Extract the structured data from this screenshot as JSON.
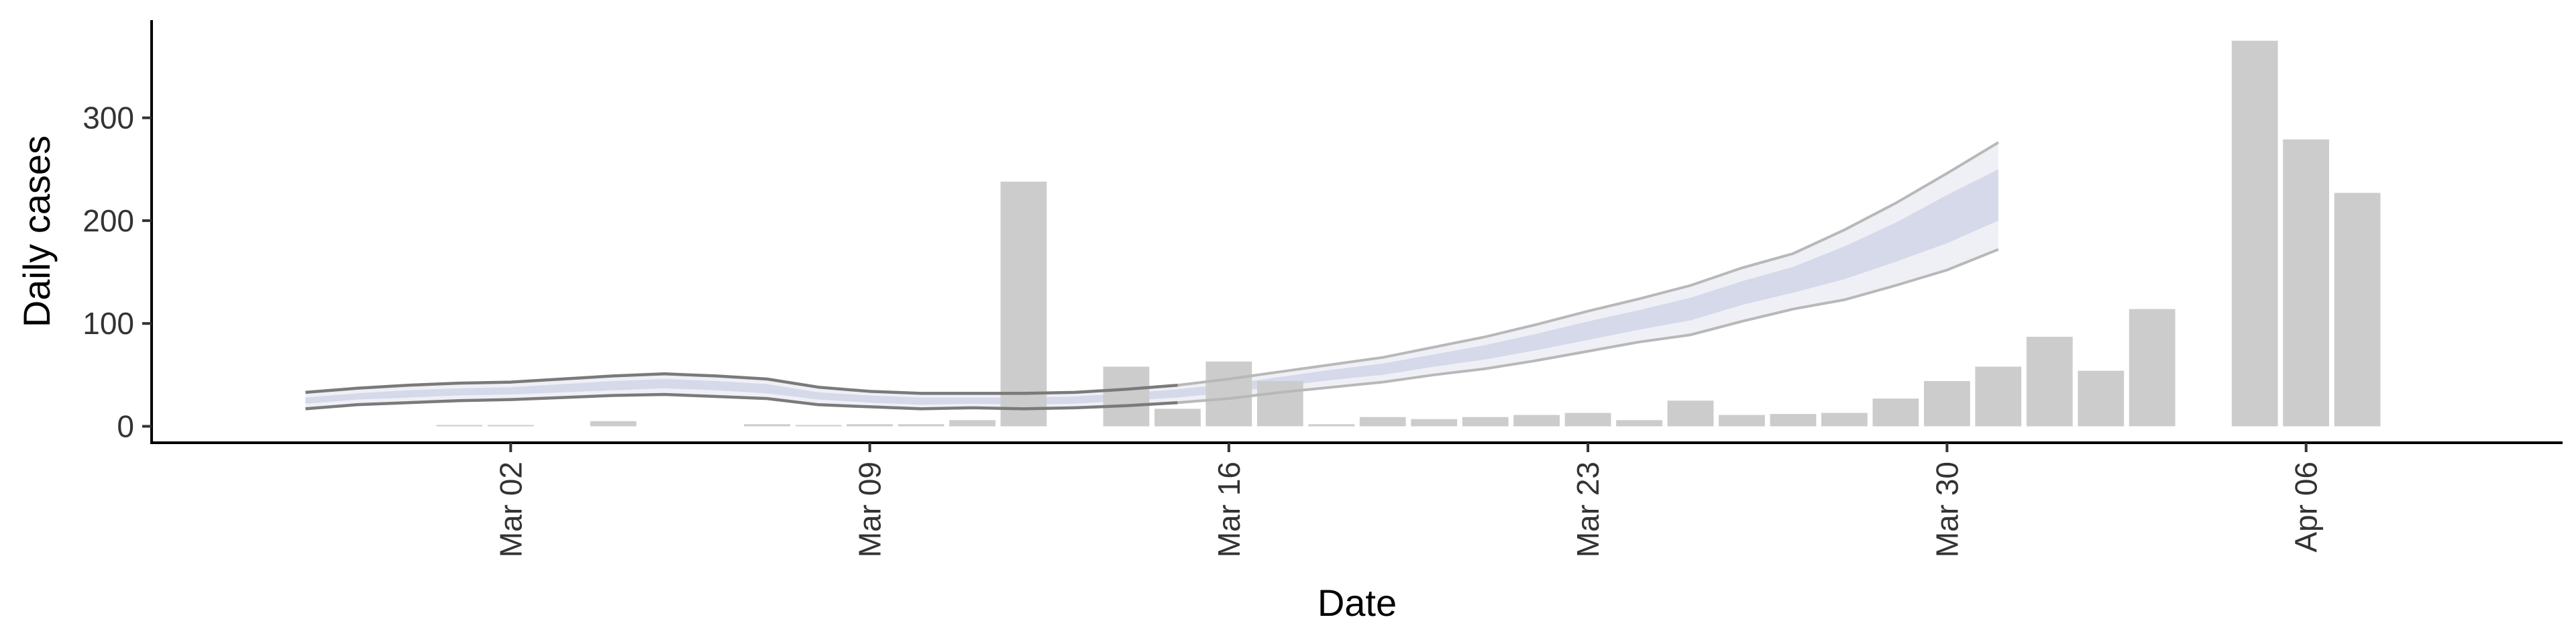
{
  "chart_data": {
    "type": "bar",
    "xlabel": "Date",
    "ylabel": "Daily cases",
    "y_ticks": [
      0,
      100,
      200,
      300
    ],
    "x_ticks": [
      {
        "date": "2020-03-02",
        "label": "Mar 02"
      },
      {
        "date": "2020-03-09",
        "label": "Mar 09"
      },
      {
        "date": "2020-03-16",
        "label": "Mar 16"
      },
      {
        "date": "2020-03-23",
        "label": "Mar 23"
      },
      {
        "date": "2020-03-30",
        "label": "Mar 30"
      },
      {
        "date": "2020-04-06",
        "label": "Apr 06"
      }
    ],
    "xlim": [
      "2020-02-24",
      "2020-04-11"
    ],
    "ylim": [
      -16,
      395
    ],
    "grid": false,
    "colors": {
      "bars": "#cccccc",
      "band_light": "#e9ebf3",
      "band_dark": "#d0d5e6",
      "bound_line": "#7a7a7a"
    },
    "bars": [
      {
        "date": "2020-03-01",
        "value": 1
      },
      {
        "date": "2020-03-02",
        "value": 1
      },
      {
        "date": "2020-03-04",
        "value": 5
      },
      {
        "date": "2020-03-07",
        "value": 2
      },
      {
        "date": "2020-03-08",
        "value": 1
      },
      {
        "date": "2020-03-09",
        "value": 2
      },
      {
        "date": "2020-03-10",
        "value": 2
      },
      {
        "date": "2020-03-11",
        "value": 6
      },
      {
        "date": "2020-03-12",
        "value": 238
      },
      {
        "date": "2020-03-14",
        "value": 58
      },
      {
        "date": "2020-03-15",
        "value": 17
      },
      {
        "date": "2020-03-16",
        "value": 63
      },
      {
        "date": "2020-03-17",
        "value": 44
      },
      {
        "date": "2020-03-18",
        "value": 2
      },
      {
        "date": "2020-03-19",
        "value": 9
      },
      {
        "date": "2020-03-20",
        "value": 7
      },
      {
        "date": "2020-03-21",
        "value": 9
      },
      {
        "date": "2020-03-22",
        "value": 11
      },
      {
        "date": "2020-03-23",
        "value": 13
      },
      {
        "date": "2020-03-24",
        "value": 6
      },
      {
        "date": "2020-03-25",
        "value": 25
      },
      {
        "date": "2020-03-26",
        "value": 11
      },
      {
        "date": "2020-03-27",
        "value": 12
      },
      {
        "date": "2020-03-28",
        "value": 13
      },
      {
        "date": "2020-03-29",
        "value": 27
      },
      {
        "date": "2020-03-30",
        "value": 44
      },
      {
        "date": "2020-03-31",
        "value": 58
      },
      {
        "date": "2020-04-01",
        "value": 87
      },
      {
        "date": "2020-04-02",
        "value": 54
      },
      {
        "date": "2020-04-03",
        "value": 114
      },
      {
        "date": "2020-04-05",
        "value": 375
      },
      {
        "date": "2020-04-06",
        "value": 279
      },
      {
        "date": "2020-04-07",
        "value": 227
      }
    ],
    "estimate_band": [
      {
        "date": "2020-02-27",
        "lower": 17,
        "upper": 33,
        "inner_lower": 22,
        "inner_upper": 28
      },
      {
        "date": "2020-02-28",
        "lower": 21,
        "upper": 37,
        "inner_lower": 26,
        "inner_upper": 32
      },
      {
        "date": "2020-02-29",
        "lower": 23,
        "upper": 40,
        "inner_lower": 28,
        "inner_upper": 35
      },
      {
        "date": "2020-03-01",
        "lower": 25,
        "upper": 42,
        "inner_lower": 30,
        "inner_upper": 37
      },
      {
        "date": "2020-03-02",
        "lower": 26,
        "upper": 43,
        "inner_lower": 31,
        "inner_upper": 38
      },
      {
        "date": "2020-03-03",
        "lower": 28,
        "upper": 46,
        "inner_lower": 33,
        "inner_upper": 41
      },
      {
        "date": "2020-03-04",
        "lower": 30,
        "upper": 49,
        "inner_lower": 35,
        "inner_upper": 44
      },
      {
        "date": "2020-03-05",
        "lower": 31,
        "upper": 51,
        "inner_lower": 37,
        "inner_upper": 46
      },
      {
        "date": "2020-03-06",
        "lower": 29,
        "upper": 49,
        "inner_lower": 35,
        "inner_upper": 44
      },
      {
        "date": "2020-03-07",
        "lower": 27,
        "upper": 46,
        "inner_lower": 32,
        "inner_upper": 41
      },
      {
        "date": "2020-03-08",
        "lower": 21,
        "upper": 38,
        "inner_lower": 26,
        "inner_upper": 33
      },
      {
        "date": "2020-03-09",
        "lower": 19,
        "upper": 34,
        "inner_lower": 23,
        "inner_upper": 30
      },
      {
        "date": "2020-03-10",
        "lower": 17,
        "upper": 32,
        "inner_lower": 21,
        "inner_upper": 28
      },
      {
        "date": "2020-03-11",
        "lower": 18,
        "upper": 32,
        "inner_lower": 22,
        "inner_upper": 28
      },
      {
        "date": "2020-03-12",
        "lower": 17,
        "upper": 32,
        "inner_lower": 21,
        "inner_upper": 28
      },
      {
        "date": "2020-03-13",
        "lower": 18,
        "upper": 33,
        "inner_lower": 22,
        "inner_upper": 29
      },
      {
        "date": "2020-03-14",
        "lower": 20,
        "upper": 36,
        "inner_lower": 25,
        "inner_upper": 32
      },
      {
        "date": "2020-03-15",
        "lower": 23,
        "upper": 40,
        "inner_lower": 28,
        "inner_upper": 36
      },
      {
        "date": "2020-03-16",
        "lower": 27,
        "upper": 46,
        "inner_lower": 33,
        "inner_upper": 41
      },
      {
        "date": "2020-03-17",
        "lower": 33,
        "upper": 53,
        "inner_lower": 39,
        "inner_upper": 48
      },
      {
        "date": "2020-03-18",
        "lower": 38,
        "upper": 60,
        "inner_lower": 45,
        "inner_upper": 55
      },
      {
        "date": "2020-03-19",
        "lower": 43,
        "upper": 67,
        "inner_lower": 50,
        "inner_upper": 61
      },
      {
        "date": "2020-03-20",
        "lower": 50,
        "upper": 77,
        "inner_lower": 58,
        "inner_upper": 70
      },
      {
        "date": "2020-03-21",
        "lower": 56,
        "upper": 87,
        "inner_lower": 65,
        "inner_upper": 79
      },
      {
        "date": "2020-03-22",
        "lower": 64,
        "upper": 99,
        "inner_lower": 74,
        "inner_upper": 90
      },
      {
        "date": "2020-03-23",
        "lower": 73,
        "upper": 112,
        "inner_lower": 84,
        "inner_upper": 102
      },
      {
        "date": "2020-03-24",
        "lower": 82,
        "upper": 124,
        "inner_lower": 94,
        "inner_upper": 113
      },
      {
        "date": "2020-03-25",
        "lower": 89,
        "upper": 137,
        "inner_lower": 103,
        "inner_upper": 125
      },
      {
        "date": "2020-03-26",
        "lower": 102,
        "upper": 154,
        "inner_lower": 118,
        "inner_upper": 141
      },
      {
        "date": "2020-03-27",
        "lower": 114,
        "upper": 168,
        "inner_lower": 130,
        "inner_upper": 155
      },
      {
        "date": "2020-03-28",
        "lower": 123,
        "upper": 191,
        "inner_lower": 143,
        "inner_upper": 175
      },
      {
        "date": "2020-03-29",
        "lower": 137,
        "upper": 217,
        "inner_lower": 160,
        "inner_upper": 198
      },
      {
        "date": "2020-03-30",
        "lower": 152,
        "upper": 246,
        "inner_lower": 178,
        "inner_upper": 225
      },
      {
        "date": "2020-03-31",
        "lower": 172,
        "upper": 276,
        "inner_lower": 200,
        "inner_upper": 250
      }
    ]
  }
}
